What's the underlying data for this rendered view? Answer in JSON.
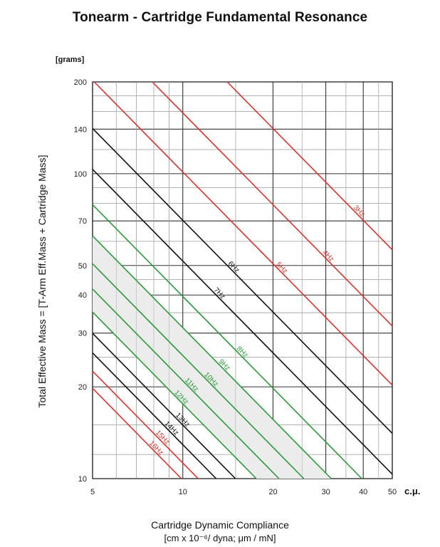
{
  "chart_data": {
    "type": "line",
    "title": "Tonearm - Cartridge Fundamental Resonance",
    "ylabel": "Total Effective Mass = [T-Arm Eff.Mass + Cartridge Mass]",
    "ylabel_unit": "[grams]",
    "xlabel": "Cartridge Dynamic Compliance",
    "xlabel_units": "[cm x 10⁻⁶/ dyna; μm / mN]",
    "x_unit_label": "c.μ.",
    "x_scale": "log",
    "y_scale": "log",
    "xlim": [
      5,
      50
    ],
    "ylim": [
      10,
      200
    ],
    "x_ticks": [
      "5",
      "10",
      "20",
      "30",
      "40",
      "50"
    ],
    "y_ticks": [
      "10",
      "20",
      "30",
      "40",
      "50",
      "70",
      "100",
      "140",
      "200"
    ],
    "grid": true,
    "shaded_region": {
      "from_hz": 9,
      "to_hz": 12,
      "color": "#ececec"
    },
    "series": [
      {
        "name": "3Hz",
        "freq": 3,
        "color": "#d9342b"
      },
      {
        "name": "4Hz",
        "freq": 4,
        "color": "#d9342b"
      },
      {
        "name": "5Hz",
        "freq": 5,
        "color": "#d9342b"
      },
      {
        "name": "6Hz",
        "freq": 6,
        "color": "#111111"
      },
      {
        "name": "7Hz",
        "freq": 7,
        "color": "#111111"
      },
      {
        "name": "8Hz",
        "freq": 8,
        "color": "#2b9a3a"
      },
      {
        "name": "9Hz",
        "freq": 9,
        "color": "#2b9a3a"
      },
      {
        "name": "10Hz",
        "freq": 10,
        "color": "#2b9a3a"
      },
      {
        "name": "11Hz",
        "freq": 11,
        "color": "#2b9a3a"
      },
      {
        "name": "12Hz",
        "freq": 12,
        "color": "#2b9a3a"
      },
      {
        "name": "13Hz",
        "freq": 13,
        "color": "#111111"
      },
      {
        "name": "14Hz",
        "freq": 14,
        "color": "#111111"
      },
      {
        "name": "15Hz",
        "freq": 15,
        "color": "#d9342b"
      },
      {
        "name": "16Hz",
        "freq": 16,
        "color": "#d9342b"
      }
    ]
  }
}
